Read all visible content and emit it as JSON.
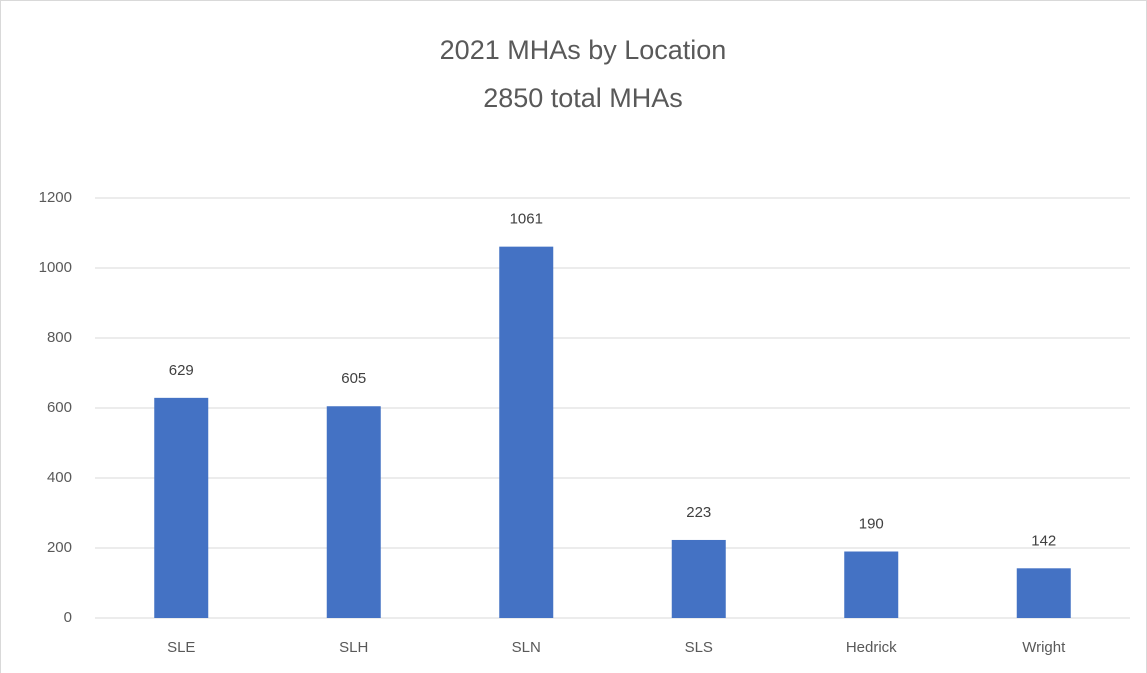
{
  "chart_data": {
    "type": "bar",
    "title": "2021 MHAs by Location",
    "subtitle": "2850 total MHAs",
    "categories": [
      "SLE",
      "SLH",
      "SLN",
      "SLS",
      "Hedrick",
      "Wright"
    ],
    "values": [
      629,
      605,
      1061,
      223,
      190,
      142
    ],
    "color": "#4472c4",
    "ylim": [
      0,
      1200
    ],
    "yticks": [
      0,
      200,
      400,
      600,
      800,
      1000,
      1200
    ],
    "grid": true
  }
}
